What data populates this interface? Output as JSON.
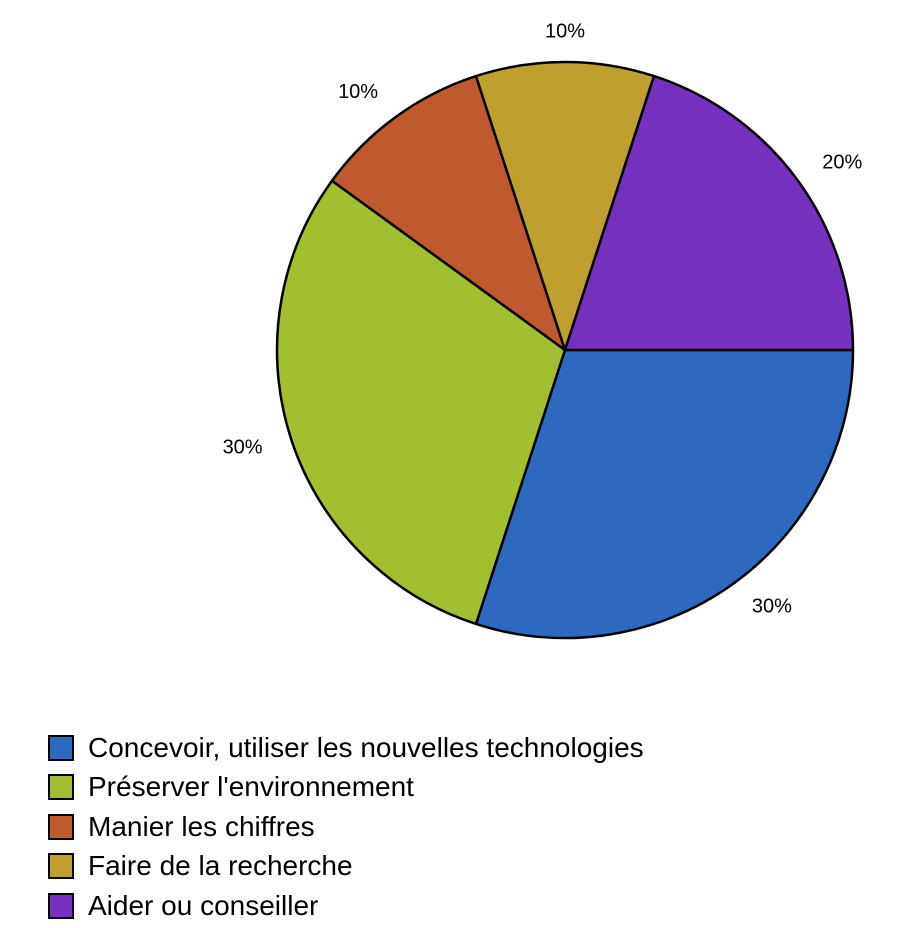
{
  "chart_data": {
    "type": "pie",
    "title": "",
    "start_angle_deg": 0,
    "direction": "clockwise",
    "legend_position": "bottom-left",
    "slices": [
      {
        "label": "Concevoir, utiliser les nouvelles technologies",
        "value": 30,
        "value_label": "30%",
        "color": "#2F69BF"
      },
      {
        "label": "Préserver l'environnement",
        "value": 30,
        "value_label": "30%",
        "color": "#A2BF2F"
      },
      {
        "label": "Manier les chiffres",
        "value": 10,
        "value_label": "10%",
        "color": "#BF5A2F"
      },
      {
        "label": "Faire de la recherche",
        "value": 10,
        "value_label": "10%",
        "color": "#BFA02F"
      },
      {
        "label": "Aider ou conseiller",
        "value": 20,
        "value_label": "20%",
        "color": "#7631BF"
      }
    ]
  }
}
